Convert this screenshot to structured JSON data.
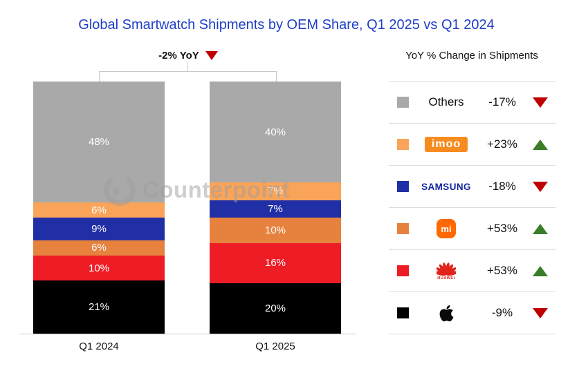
{
  "title": "Global Smartwatch Shipments by OEM Share, Q1 2025 vs Q1 2024",
  "annotation": {
    "text": "-2% YoY",
    "direction": "down"
  },
  "watermark": {
    "text": "Counterpoint"
  },
  "chart_data": {
    "type": "bar",
    "subtype": "stacked-100-percent",
    "title": "Global Smartwatch Shipments by OEM Share, Q1 2025 vs Q1 2024",
    "categories": [
      "Q1 2024",
      "Q1 2025"
    ],
    "unit": "%",
    "ylim": [
      0,
      100
    ],
    "grid": false,
    "legend_position": "right",
    "total_yoy_change": "-2% YoY",
    "series": [
      {
        "name": "Others",
        "color": "#A9A9A9",
        "values": [
          48,
          40
        ]
      },
      {
        "name": "imoo",
        "color": "#F9A458",
        "values": [
          6,
          7
        ]
      },
      {
        "name": "Samsung",
        "color": "#202FA6",
        "values": [
          9,
          7
        ]
      },
      {
        "name": "Xiaomi",
        "color": "#E6823E",
        "values": [
          6,
          10
        ]
      },
      {
        "name": "Huawei",
        "color": "#EE1C25",
        "values": [
          10,
          16
        ]
      },
      {
        "name": "Apple",
        "color": "#000000",
        "values": [
          21,
          20
        ]
      }
    ]
  },
  "legend": {
    "title": "YoY % Change in Shipments",
    "rows": [
      {
        "brand": "Others",
        "label": "Others",
        "swatch": "#A9A9A9",
        "change": "-17%",
        "direction": "down"
      },
      {
        "brand": "imoo",
        "label": "imoo",
        "swatch": "#F9A458",
        "change": "+23%",
        "direction": "up"
      },
      {
        "brand": "Samsung",
        "label": "SAMSUNG",
        "swatch": "#202FA6",
        "change": "-18%",
        "direction": "down"
      },
      {
        "brand": "Xiaomi",
        "label": "mi",
        "swatch": "#E6823E",
        "change": "+53%",
        "direction": "up"
      },
      {
        "brand": "Huawei",
        "label": "HUAWEI",
        "swatch": "#EE1C25",
        "change": "+53%",
        "direction": "up"
      },
      {
        "brand": "Apple",
        "label": "",
        "swatch": "#000000",
        "change": "-9%",
        "direction": "down"
      }
    ]
  },
  "colors": {
    "title_text": "#1E3EC8",
    "up_triangle": "#3A7D28",
    "down_triangle": "#C00000",
    "separator": "#DCDCDC",
    "bracket": "#C9C9C9",
    "samsung_wordmark": "#1428A0",
    "imoo_logo_bg": "#F68B1F",
    "xiaomi_logo_bg": "#FF6900",
    "huawei_red": "#E2231A"
  }
}
